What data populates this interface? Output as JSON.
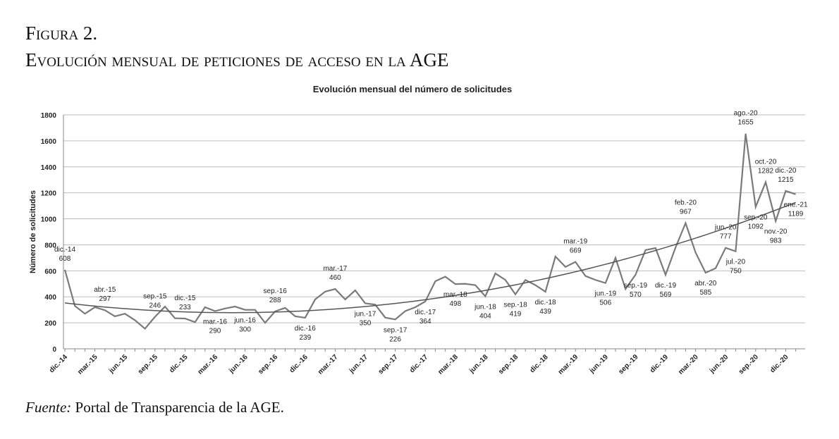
{
  "figure_label": "Figura 2.",
  "figure_title": "Evolución mensual de peticiones de acceso en la AGE",
  "source_label": "Fuente:",
  "source_text": "Portal de Transparencia de la AGE.",
  "chart_data": {
    "type": "line",
    "title": "Evolución mensual del número de solicitudes",
    "y_label": "Número de solicitudes",
    "color": "#7a7a7a",
    "trend_color": "#555555",
    "grid": true,
    "trendline": true,
    "ylim": [
      0,
      1800
    ],
    "yticks": [
      0,
      200,
      400,
      600,
      800,
      1000,
      1200,
      1400,
      1600,
      1800
    ],
    "categories": [
      "dic.-14",
      null,
      null,
      "mar.-15",
      null,
      null,
      "jun.-15",
      null,
      null,
      "sep.-15",
      null,
      null,
      "dic.-15",
      null,
      null,
      "mar.-16",
      null,
      null,
      "jun.-16",
      null,
      null,
      "sep.-16",
      null,
      null,
      "dic.-16",
      null,
      null,
      "mar.-17",
      null,
      null,
      "jun.-17",
      null,
      null,
      "sep.-17",
      null,
      null,
      "dic.-17",
      null,
      null,
      "mar.-18",
      null,
      null,
      "jun.-18",
      null,
      null,
      "sep.-18",
      null,
      null,
      "dic.-18",
      null,
      null,
      "mar.-19",
      null,
      null,
      "jun.-19",
      null,
      null,
      "sep.-19",
      null,
      null,
      "dic.-19",
      null,
      null,
      "mar.-20",
      null,
      null,
      "jun.-20",
      null,
      null,
      "sep.-20",
      null,
      null,
      "dic.-20",
      null
    ],
    "values": [
      608,
      330,
      270,
      320,
      297,
      250,
      270,
      220,
      155,
      246,
      325,
      235,
      233,
      205,
      320,
      290,
      310,
      325,
      300,
      300,
      200,
      288,
      315,
      250,
      239,
      380,
      440,
      460,
      380,
      450,
      350,
      340,
      240,
      226,
      290,
      320,
      364,
      520,
      555,
      498,
      500,
      490,
      404,
      580,
      530,
      419,
      530,
      490,
      439,
      710,
      630,
      669,
      560,
      530,
      506,
      700,
      460,
      570,
      760,
      775,
      569,
      780,
      967,
      740,
      585,
      620,
      777,
      750,
      1655,
      1092,
      1282,
      983,
      1215,
      1189
    ],
    "point_labels": [
      "dic.-14",
      null,
      null,
      null,
      "abr.-15",
      null,
      null,
      null,
      null,
      "sep.-15",
      null,
      null,
      "dic.-15",
      null,
      null,
      "mar.-16",
      null,
      null,
      "jun.-16",
      null,
      null,
      "sep.-16",
      null,
      null,
      "dic.-16",
      null,
      null,
      "mar.-17",
      null,
      null,
      "jun.-17",
      null,
      null,
      "sep.-17",
      null,
      null,
      "dic.-17",
      null,
      null,
      "mar.-18",
      null,
      null,
      "jun.-18",
      null,
      null,
      "sep.-18",
      null,
      null,
      "dic.-18",
      null,
      null,
      "mar.-19",
      null,
      null,
      "jun.-19",
      null,
      null,
      "sep.-19",
      null,
      null,
      "dic.-19",
      null,
      "feb.-20",
      null,
      "abr.-20",
      null,
      "jun.-20",
      "jul.-20",
      "ago.-20",
      "sep.-20",
      "oct.-20",
      "nov.-20",
      "dic.-20",
      "ene.-21"
    ]
  }
}
